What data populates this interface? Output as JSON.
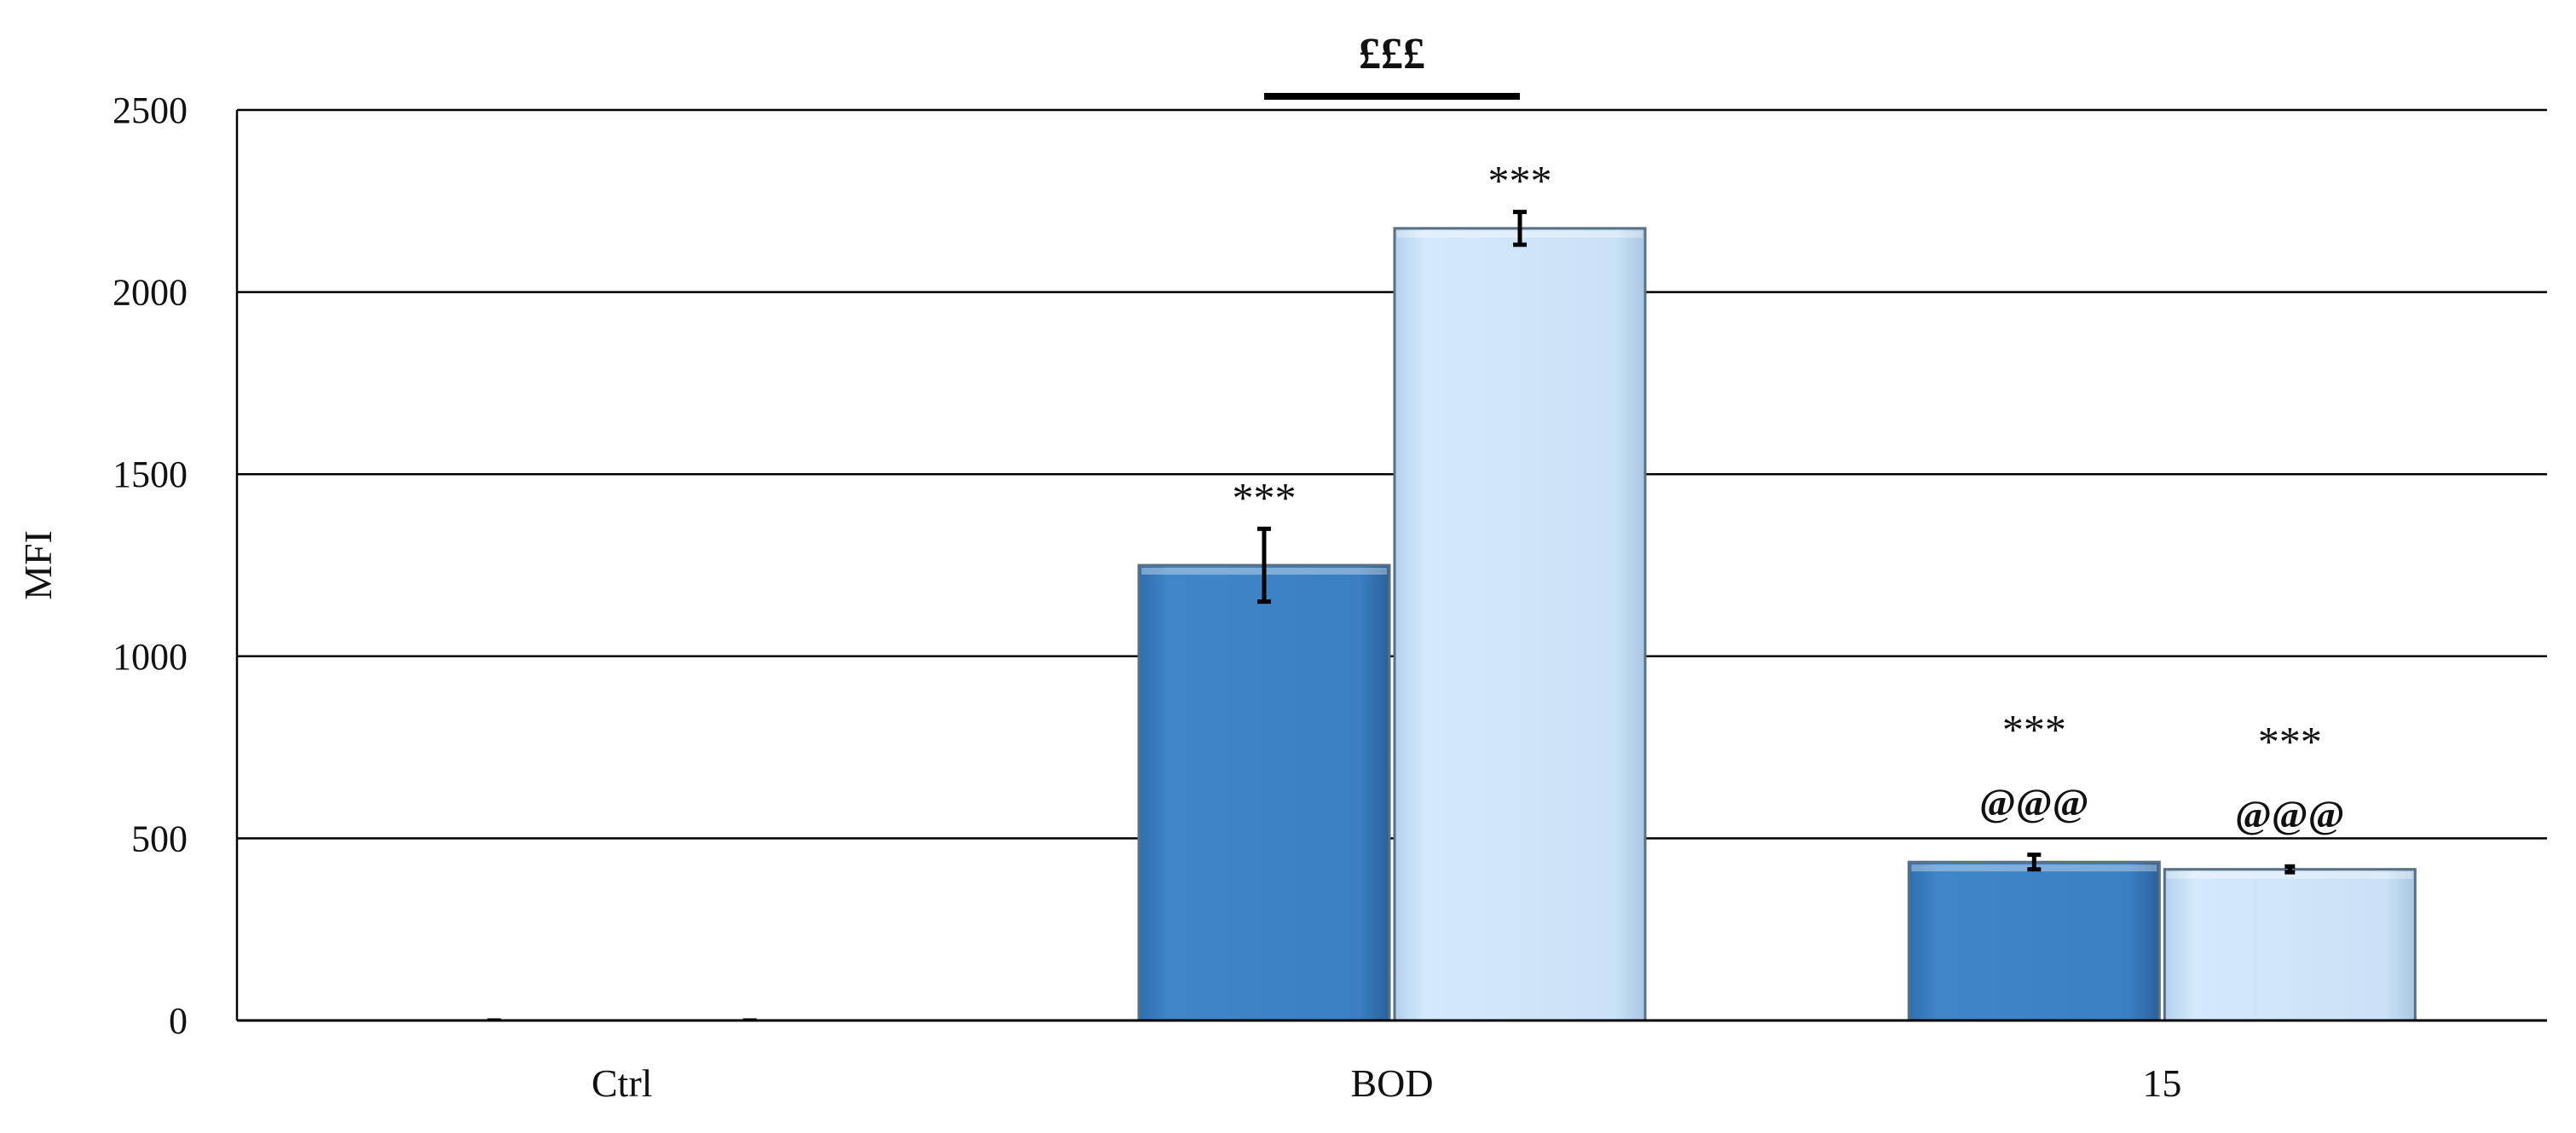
{
  "chart_data": {
    "type": "bar",
    "title": "",
    "xlabel": "",
    "ylabel": "MFI",
    "ylim": [
      0,
      2500
    ],
    "yticks": [
      0,
      500,
      1000,
      1500,
      2000,
      2500
    ],
    "grid": true,
    "categories": [
      "Ctrl",
      "BOD",
      "15"
    ],
    "series": [
      {
        "color": "#3a7fc3",
        "values": [
          0,
          1250,
          435
        ],
        "errors": [
          0,
          100,
          20
        ],
        "annotations": [
          [],
          [
            "***"
          ],
          [
            "@@@",
            "***"
          ]
        ]
      },
      {
        "color": "#c9e2f7",
        "values": [
          0,
          2175,
          415
        ],
        "errors": [
          0,
          45,
          8
        ],
        "annotations": [
          [],
          [
            "***"
          ],
          [
            "@@@",
            "***"
          ]
        ]
      }
    ],
    "comparison": {
      "label": "£££",
      "category": "BOD"
    }
  }
}
